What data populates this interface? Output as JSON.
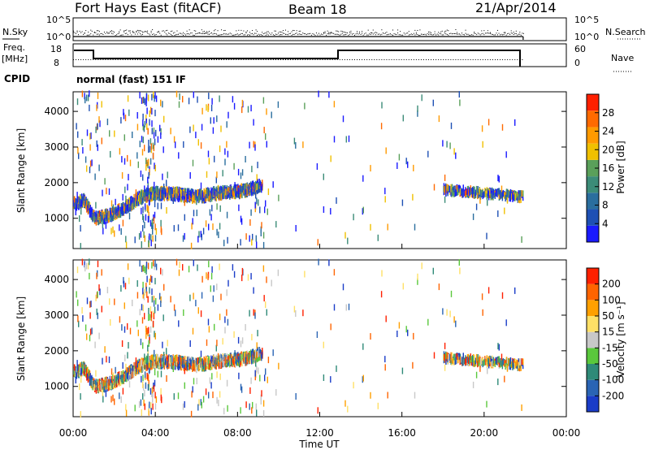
{
  "header": {
    "station": "Fort Hays East (fitACF)",
    "beam": "Beam 18",
    "date": "21/Apr/2014"
  },
  "aux_panels": {
    "nsky_label": "N.Sky",
    "nsearch_label": "N.Search",
    "freq_label": "Freq.",
    "freq_unit": "[MHz]",
    "nave_label": "Nave",
    "cpid_label": "CPID",
    "cpid_text": "normal (fast) 151 IF",
    "noise_ticks": [
      "10^5",
      "10^0"
    ],
    "freq_ticks": [
      "18",
      "8"
    ],
    "nave_ticks": [
      "60",
      "0"
    ]
  },
  "colors": {
    "power_scale": [
      "#1a1aff",
      "#1e50b4",
      "#2a6e9e",
      "#3c8c78",
      "#5aa05a",
      "#f0c000",
      "#ff9a00",
      "#ff6a00",
      "#ff2000"
    ],
    "velocity_scale": [
      "#1a3cc8",
      "#2a64b4",
      "#2f8a78",
      "#5ac83c",
      "#c8c8c8",
      "#ffe066",
      "#ffa000",
      "#ff6400",
      "#ff2000"
    ]
  },
  "chart_data": [
    {
      "type": "heatmap",
      "title": "",
      "ylabel": "Slant Range [km]",
      "xlabel": "",
      "ylim": [
        150,
        4550
      ],
      "yticks": [
        "4000",
        "3000",
        "2000",
        "1000"
      ],
      "colorbar_label": "Power [dB]",
      "colorbar_ticks": [
        "28",
        "24",
        "20",
        "16",
        "12",
        "8",
        "4"
      ],
      "crange": [
        0,
        32
      ],
      "echo_band": {
        "time_h": [
          0.0,
          0.5,
          1.0,
          1.5,
          2.0,
          2.5,
          3.0,
          3.5,
          4.0,
          5.0,
          6.0,
          7.0,
          8.0,
          8.5,
          9.2
        ],
        "range_km": [
          1400,
          1500,
          1000,
          1050,
          1150,
          1300,
          1500,
          1650,
          1700,
          1680,
          1600,
          1700,
          1750,
          1800,
          1950
        ]
      },
      "late_band": {
        "time_h": [
          18.0,
          19.0,
          20.0,
          21.0,
          21.9
        ],
        "range_km": [
          1800,
          1750,
          1700,
          1650,
          1600
        ]
      }
    },
    {
      "type": "heatmap",
      "title": "",
      "ylabel": "Slant Range [km]",
      "xlabel": "Time UT",
      "ylim": [
        150,
        4550
      ],
      "yticks": [
        "4000",
        "3000",
        "2000",
        "1000"
      ],
      "xticks": [
        "00:00",
        "04:00",
        "08:00",
        "12:00",
        "16:00",
        "20:00",
        "00:00"
      ],
      "colorbar_label": "Velocity [m s⁻¹]",
      "colorbar_ticks": [
        "200",
        "100",
        "50",
        "15",
        "-15",
        "-50",
        "-100",
        "-200"
      ],
      "crange": [
        -250,
        250
      ]
    }
  ]
}
